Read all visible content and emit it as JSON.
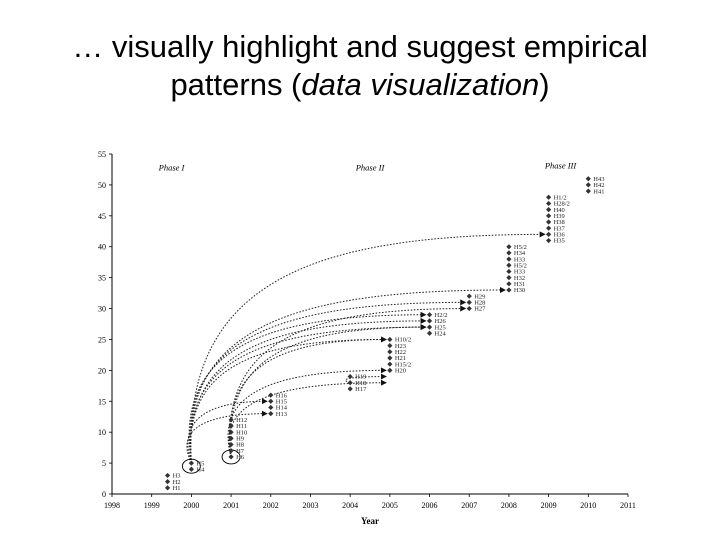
{
  "slide": {
    "title_line1": "… visually highlight and suggest empirical",
    "title_line2_prefix": "patterns (",
    "title_line2_em": "data visualization",
    "title_line2_suffix": ")"
  },
  "chart_data": {
    "type": "scatter",
    "xlabel": "Year",
    "ylabel": "",
    "xlim": [
      1998,
      2011
    ],
    "ylim": [
      0,
      55
    ],
    "x_ticks": [
      1998,
      1999,
      2000,
      2001,
      2002,
      2003,
      2004,
      2005,
      2006,
      2007,
      2008,
      2009,
      2010,
      2011
    ],
    "y_ticks": [
      0,
      5,
      10,
      15,
      20,
      25,
      30,
      35,
      40,
      45,
      50,
      55
    ],
    "grid": false,
    "annotations": [
      {
        "text": "Phase I",
        "x": 1999.5,
        "y": 53
      },
      {
        "text": "Phase II",
        "x": 2004.5,
        "y": 53
      },
      {
        "text": "Phase III",
        "x": 2009.3,
        "y": 53.3
      }
    ],
    "points": [
      {
        "x": 1999.4,
        "y": 1,
        "label": "H1"
      },
      {
        "x": 1999.4,
        "y": 2,
        "label": "H2"
      },
      {
        "x": 1999.4,
        "y": 3,
        "label": "H3"
      },
      {
        "x": 2000,
        "y": 4,
        "label": "H4"
      },
      {
        "x": 2000,
        "y": 5,
        "label": "H5"
      },
      {
        "x": 2001,
        "y": 6,
        "label": "H6"
      },
      {
        "x": 2001,
        "y": 7,
        "label": "H7"
      },
      {
        "x": 2001,
        "y": 8,
        "label": "H8"
      },
      {
        "x": 2001,
        "y": 9,
        "label": "H9"
      },
      {
        "x": 2001,
        "y": 10,
        "label": "H10"
      },
      {
        "x": 2001,
        "y": 11,
        "label": "H11"
      },
      {
        "x": 2001,
        "y": 12,
        "label": "H12"
      },
      {
        "x": 2002,
        "y": 13,
        "label": "H13"
      },
      {
        "x": 2002,
        "y": 14,
        "label": "H14"
      },
      {
        "x": 2002,
        "y": 15,
        "label": "H15"
      },
      {
        "x": 2002,
        "y": 16,
        "label": "H16"
      },
      {
        "x": 2004,
        "y": 17,
        "label": "H17"
      },
      {
        "x": 2004,
        "y": 18,
        "label": "H18"
      },
      {
        "x": 2004,
        "y": 19,
        "label": "H19"
      },
      {
        "x": 2005,
        "y": 20,
        "label": "H20"
      },
      {
        "x": 2005,
        "y": 21,
        "label": "H15/2"
      },
      {
        "x": 2005,
        "y": 22,
        "label": "H21"
      },
      {
        "x": 2005,
        "y": 23,
        "label": "H22"
      },
      {
        "x": 2005,
        "y": 24,
        "label": "H23"
      },
      {
        "x": 2005,
        "y": 25,
        "label": "H10/2"
      },
      {
        "x": 2006,
        "y": 26,
        "label": "H24"
      },
      {
        "x": 2006,
        "y": 27,
        "label": "H25"
      },
      {
        "x": 2006,
        "y": 28,
        "label": "H26"
      },
      {
        "x": 2006,
        "y": 29,
        "label": "H2/2"
      },
      {
        "x": 2007,
        "y": 30,
        "label": "H27"
      },
      {
        "x": 2007,
        "y": 31,
        "label": "H28"
      },
      {
        "x": 2007,
        "y": 32,
        "label": "H29"
      },
      {
        "x": 2008,
        "y": 33,
        "label": "H30"
      },
      {
        "x": 2008,
        "y": 34,
        "label": "H31"
      },
      {
        "x": 2008,
        "y": 35,
        "label": "H32"
      },
      {
        "x": 2008,
        "y": 36,
        "label": "H33"
      },
      {
        "x": 2008,
        "y": 37,
        "label": "H5/2"
      },
      {
        "x": 2008,
        "y": 38,
        "label": "H33"
      },
      {
        "x": 2008,
        "y": 39,
        "label": "H34"
      },
      {
        "x": 2008,
        "y": 40,
        "label": "H5/2"
      },
      {
        "x": 2009,
        "y": 41,
        "label": "H35"
      },
      {
        "x": 2009,
        "y": 42,
        "label": "H36"
      },
      {
        "x": 2009,
        "y": 43,
        "label": "H37"
      },
      {
        "x": 2009,
        "y": 44,
        "label": "H38"
      },
      {
        "x": 2009,
        "y": 45,
        "label": "H39"
      },
      {
        "x": 2009,
        "y": 46,
        "label": "H40"
      },
      {
        "x": 2009,
        "y": 47,
        "label": "H28/2"
      },
      {
        "x": 2009,
        "y": 48,
        "label": "H1/2"
      },
      {
        "x": 2010,
        "y": 49,
        "label": "H41"
      },
      {
        "x": 2010,
        "y": 50,
        "label": "H42"
      },
      {
        "x": 2010,
        "y": 51,
        "label": "H43"
      }
    ],
    "arrows": [
      {
        "from": [
          2000,
          5
        ],
        "to": [
          2009,
          42
        ]
      },
      {
        "from": [
          2000,
          5
        ],
        "to": [
          2008,
          33
        ]
      },
      {
        "from": [
          2000,
          5
        ],
        "to": [
          2007,
          31
        ]
      },
      {
        "from": [
          2000,
          5
        ],
        "to": [
          2006,
          29
        ]
      },
      {
        "from": [
          2000,
          5
        ],
        "to": [
          2006,
          28
        ]
      },
      {
        "from": [
          2000,
          5
        ],
        "to": [
          2006,
          27
        ]
      },
      {
        "from": [
          2000,
          5
        ],
        "to": [
          2002,
          15
        ]
      },
      {
        "from": [
          2000,
          5
        ],
        "to": [
          2002,
          13
        ]
      },
      {
        "from": [
          2000,
          5
        ],
        "to": [
          2005,
          25
        ]
      },
      {
        "from": [
          2001,
          6
        ],
        "to": [
          2005,
          25
        ]
      },
      {
        "from": [
          2001,
          6
        ],
        "to": [
          2005,
          18
        ]
      },
      {
        "from": [
          2001,
          6
        ],
        "to": [
          2005,
          20
        ]
      },
      {
        "from": [
          2001,
          6
        ],
        "to": [
          2006,
          27
        ]
      },
      {
        "from": [
          2001,
          6
        ],
        "to": [
          2007,
          30
        ]
      },
      {
        "from": [
          2004,
          18
        ],
        "to": [
          2005,
          19
        ]
      }
    ],
    "highlight_circles": [
      {
        "x": 2000,
        "y": 4.5
      },
      {
        "x": 2001,
        "y": 6
      }
    ]
  }
}
